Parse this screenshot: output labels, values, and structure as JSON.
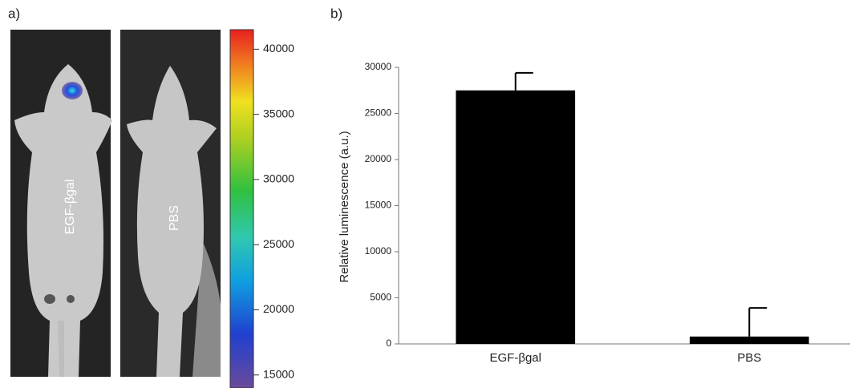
{
  "chart_data": [
    {
      "type": "image",
      "panel": "a)",
      "labels": [
        "EGF-βgal",
        "PBS"
      ],
      "colorbar": {
        "lim": [
          14000,
          41500
        ],
        "ticks": [
          15000,
          20000,
          25000,
          30000,
          35000,
          40000
        ]
      }
    },
    {
      "type": "bar",
      "panel": "b)",
      "ylabel": "Relative luminescence (a.u.)",
      "categories": [
        "EGF-βgal",
        "PBS"
      ],
      "values": [
        27500,
        800
      ],
      "errors": [
        1900,
        3100
      ],
      "color": "#000000",
      "ylim": [
        0,
        30000
      ],
      "yticks": [
        0,
        5000,
        10000,
        15000,
        20000,
        25000,
        30000
      ]
    }
  ]
}
